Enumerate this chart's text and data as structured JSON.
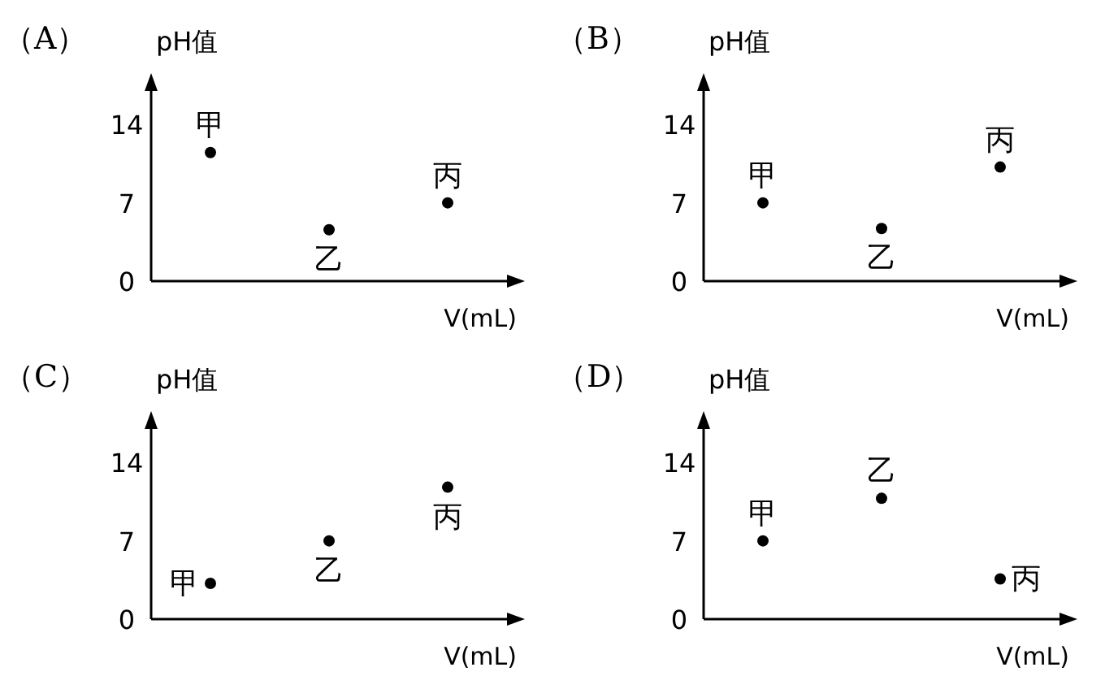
{
  "chart_data": [
    {
      "type": "scatter",
      "title": "（A）",
      "ylabel": "pH值",
      "xlabel": "V(mL)",
      "categories": [
        null,
        null,
        null
      ],
      "ylim": [
        0,
        17
      ],
      "yticks": [
        0,
        7,
        14
      ],
      "marker": "circle",
      "series": [
        {
          "name": "甲",
          "color": "#000000",
          "values": [
            11.5,
            null,
            null
          ]
        },
        {
          "name": "乙",
          "color": "#000000",
          "values": [
            null,
            4.6,
            null
          ]
        },
        {
          "name": "丙",
          "color": "#000000",
          "values": [
            null,
            null,
            7
          ]
        }
      ]
    },
    {
      "type": "scatter",
      "title": "（B）",
      "ylabel": "pH值",
      "xlabel": "V(mL)",
      "categories": [
        null,
        null,
        null
      ],
      "ylim": [
        0,
        17
      ],
      "yticks": [
        0,
        7,
        14
      ],
      "marker": "circle",
      "series": [
        {
          "name": "甲",
          "color": "#000000",
          "values": [
            7,
            null,
            null
          ]
        },
        {
          "name": "乙",
          "color": "#000000",
          "values": [
            null,
            4.7,
            null
          ]
        },
        {
          "name": "丙",
          "color": "#000000",
          "values": [
            null,
            null,
            10.2
          ]
        }
      ]
    },
    {
      "type": "scatter",
      "title": "（C）",
      "ylabel": "pH值",
      "xlabel": "V(mL)",
      "categories": [
        null,
        null,
        null
      ],
      "ylim": [
        0,
        17
      ],
      "yticks": [
        0,
        7,
        14
      ],
      "marker": "circle",
      "series": [
        {
          "name": "甲",
          "color": "#000000",
          "values": [
            3.2,
            null,
            null
          ]
        },
        {
          "name": "乙",
          "color": "#000000",
          "values": [
            null,
            7,
            null
          ]
        },
        {
          "name": "丙",
          "color": "#000000",
          "values": [
            null,
            null,
            11.8
          ]
        }
      ]
    },
    {
      "type": "scatter",
      "title": "（D）",
      "ylabel": "pH值",
      "xlabel": "V(mL)",
      "categories": [
        null,
        null,
        null
      ],
      "ylim": [
        0,
        17
      ],
      "yticks": [
        0,
        7,
        14
      ],
      "marker": "circle",
      "series": [
        {
          "name": "甲",
          "color": "#000000",
          "values": [
            7,
            null,
            null
          ]
        },
        {
          "name": "乙",
          "color": "#000000",
          "values": [
            null,
            10.8,
            null
          ]
        },
        {
          "name": "丙",
          "color": "#000000",
          "values": [
            null,
            null,
            3.6
          ]
        }
      ]
    }
  ]
}
